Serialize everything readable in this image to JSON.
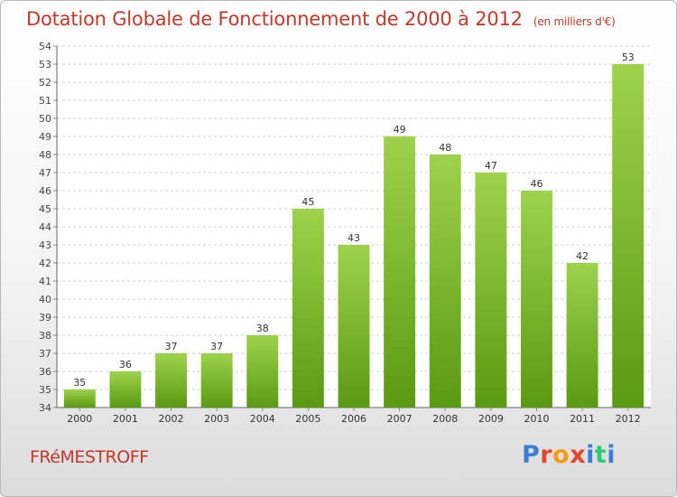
{
  "header": {
    "title": "Dotation Globale de Fonctionnement de 2000 à 2012",
    "unit": "(en milliers d'€)"
  },
  "footer": {
    "commune": "FRéMESTROFF",
    "logo_text": "Proxiti",
    "logo_colors": [
      "#3b7fd4",
      "#e8452f",
      "#f39c12",
      "#e8452f",
      "#3b7fd4",
      "#2ecc71",
      "#3b7fd4"
    ]
  },
  "colors": {
    "bar_top": "#9ed24c",
    "bar_bottom": "#5a9a12",
    "title": "#c0392b"
  },
  "chart_data": {
    "type": "bar",
    "categories": [
      "2000",
      "2001",
      "2002",
      "2003",
      "2004",
      "2005",
      "2006",
      "2007",
      "2008",
      "2009",
      "2010",
      "2011",
      "2012"
    ],
    "values": [
      35,
      36,
      37,
      37,
      38,
      45,
      43,
      49,
      48,
      47,
      46,
      42,
      53
    ],
    "ylim": [
      34,
      54
    ],
    "yticks": [
      34,
      35,
      36,
      37,
      38,
      39,
      40,
      41,
      42,
      43,
      44,
      45,
      46,
      47,
      48,
      49,
      50,
      51,
      52,
      53,
      54
    ],
    "grid": "horizontal dashed",
    "data_labels": true
  }
}
